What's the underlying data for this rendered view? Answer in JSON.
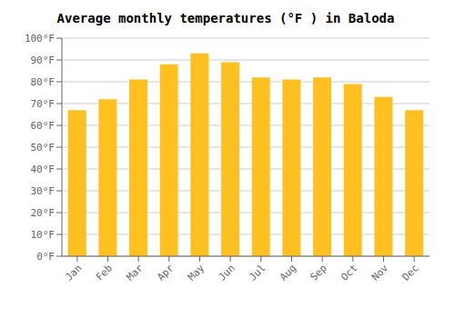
{
  "chart_data": {
    "type": "bar",
    "title": "Average monthly temperatures (°F ) in Baloda",
    "categories": [
      "Jan",
      "Feb",
      "Mar",
      "Apr",
      "May",
      "Jun",
      "Jul",
      "Aug",
      "Sep",
      "Oct",
      "Nov",
      "Dec"
    ],
    "values": [
      67,
      72,
      81,
      88,
      93,
      89,
      82,
      81,
      82,
      79,
      73,
      67
    ],
    "color": "#FFC020",
    "ylim": [
      0,
      100
    ],
    "yticks": [
      {
        "value": 0,
        "label": "0°F"
      },
      {
        "value": 10,
        "label": "10°F"
      },
      {
        "value": 20,
        "label": "20°F"
      },
      {
        "value": 30,
        "label": "30°F"
      },
      {
        "value": 40,
        "label": "40°F"
      },
      {
        "value": 50,
        "label": "50°F"
      },
      {
        "value": 60,
        "label": "60°F"
      },
      {
        "value": 70,
        "label": "70°F"
      },
      {
        "value": 80,
        "label": "80°F"
      },
      {
        "value": 90,
        "label": "90°F"
      },
      {
        "value": 100,
        "label": "100°F"
      }
    ],
    "grid": true
  }
}
